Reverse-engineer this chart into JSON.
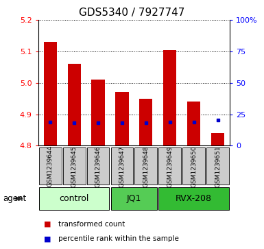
{
  "title": "GDS5340 / 7927747",
  "samples": [
    "GSM1239644",
    "GSM1239645",
    "GSM1239646",
    "GSM1239647",
    "GSM1239648",
    "GSM1239649",
    "GSM1239650",
    "GSM1239651"
  ],
  "bar_values": [
    5.13,
    5.06,
    5.01,
    4.97,
    4.95,
    5.105,
    4.94,
    4.84
  ],
  "bar_bottom": 4.8,
  "blue_values": [
    4.875,
    4.873,
    4.873,
    4.873,
    4.873,
    4.876,
    4.874,
    4.882
  ],
  "bar_color": "#cc0000",
  "blue_color": "#0000cc",
  "ylim": [
    4.8,
    5.2
  ],
  "y2lim": [
    0,
    100
  ],
  "yticks": [
    4.8,
    4.9,
    5.0,
    5.1,
    5.2
  ],
  "y2ticks": [
    0,
    25,
    50,
    75,
    100
  ],
  "y2ticklabels": [
    "0",
    "25",
    "50",
    "75",
    "100%"
  ],
  "groups": [
    {
      "label": "control",
      "indices": [
        0,
        1,
        2
      ],
      "color": "#ccffcc"
    },
    {
      "label": "JQ1",
      "indices": [
        3,
        4
      ],
      "color": "#55cc55"
    },
    {
      "label": "RVX-208",
      "indices": [
        5,
        6,
        7
      ],
      "color": "#33bb33"
    }
  ],
  "agent_label": "agent",
  "legend_items": [
    {
      "color": "#cc0000",
      "label": "transformed count"
    },
    {
      "color": "#0000cc",
      "label": "percentile rank within the sample"
    }
  ],
  "sample_bg_color": "#cccccc",
  "plot_bg": "#ffffff",
  "bar_width": 0.55,
  "grid_color": "#000000",
  "title_fontsize": 11,
  "tick_fontsize": 8,
  "sample_fontsize": 6.5,
  "group_fontsize": 9,
  "legend_fontsize": 7.5
}
